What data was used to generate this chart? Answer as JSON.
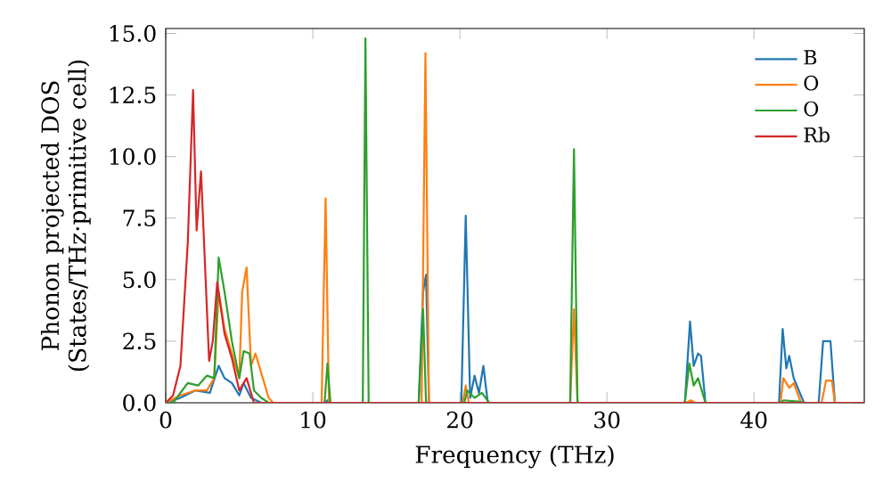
{
  "chart_data": {
    "type": "line",
    "xlabel": "Frequency (THz)",
    "ylabel": "Phonon projected DOS (States/THz·primitive cell)",
    "xlim": [
      0,
      47.5
    ],
    "ylim": [
      0,
      15.2
    ],
    "xticks": [
      0,
      10,
      20,
      30,
      40
    ],
    "yticks": [
      {
        "value": 0,
        "label": "0.0"
      },
      {
        "value": 2.5,
        "label": "2.5"
      },
      {
        "value": 5,
        "label": "5.0"
      },
      {
        "value": 7.5,
        "label": "7.5"
      },
      {
        "value": 10,
        "label": "10.0"
      },
      {
        "value": 12.5,
        "label": "12.5"
      },
      {
        "value": 15,
        "label": "15.0"
      }
    ],
    "legend": "top right",
    "marker": "none",
    "line_style": "solid",
    "grid": false,
    "series": [
      {
        "name": "B",
        "color": "#1f77b4",
        "x": [
          0,
          1,
          2,
          3,
          3.6,
          4,
          4.5,
          5,
          5.3,
          5.8,
          6.5,
          10.8,
          11,
          11.2,
          17.2,
          17.5,
          17.7,
          17.9,
          20.1,
          20.4,
          20.7,
          21,
          21.3,
          21.6,
          21.9,
          35.3,
          35.65,
          35.9,
          36.2,
          36.4,
          36.7,
          41.7,
          41.95,
          42.2,
          42.4,
          42.7,
          43.4,
          44.4,
          44.7,
          45.2,
          45.5,
          47.5
        ],
        "values": [
          0,
          0.2,
          0.5,
          0.4,
          1.5,
          1.0,
          0.8,
          0.3,
          0.8,
          0.2,
          0,
          0,
          0.1,
          0,
          0,
          4.5,
          5.2,
          0,
          0,
          7.6,
          0.2,
          1.1,
          0.4,
          1.5,
          0,
          0,
          3.3,
          1.5,
          2.0,
          1.9,
          0,
          0,
          3.0,
          1.4,
          1.9,
          1.0,
          0,
          0,
          2.5,
          2.5,
          0,
          0
        ]
      },
      {
        "name": "O",
        "color": "#ff7f0e",
        "x": [
          0,
          1,
          2,
          2.8,
          3.3,
          3.6,
          4,
          4.5,
          5,
          5.2,
          5.5,
          5.8,
          6.1,
          6.7,
          7,
          7.3,
          10.6,
          10.87,
          11.1,
          17.4,
          17.66,
          17.9,
          20.2,
          20.4,
          20.6,
          27.5,
          27.76,
          28,
          35.4,
          35.7,
          36,
          41.8,
          42,
          42.4,
          42.7,
          43.2,
          44.6,
          44.9,
          45.3,
          45.5,
          47.5
        ],
        "values": [
          0,
          0.3,
          0.5,
          0.5,
          1.0,
          4.5,
          3.0,
          2.0,
          1.0,
          4.5,
          5.5,
          1.5,
          2.0,
          0.8,
          0.2,
          0,
          0,
          8.3,
          0,
          0,
          14.2,
          0,
          0,
          0.7,
          0,
          0,
          3.8,
          0,
          0,
          0.1,
          0,
          0,
          1.0,
          0.6,
          0.8,
          0,
          0,
          0.9,
          0.9,
          0,
          0
        ]
      },
      {
        "name": "O",
        "color": "#2ca02c",
        "x": [
          0,
          0.5,
          1.5,
          2.2,
          2.8,
          3.3,
          3.6,
          4,
          4.5,
          5,
          5.3,
          5.7,
          6,
          6.5,
          7,
          10.8,
          11,
          11.2,
          13.4,
          13.58,
          13.8,
          17.2,
          17.5,
          17.7,
          20.3,
          20.5,
          21,
          21.5,
          22,
          27.5,
          27.76,
          28,
          35.3,
          35.6,
          35.9,
          36.2,
          36.7,
          41.8,
          42,
          43,
          43.5,
          47.5
        ],
        "values": [
          0,
          0,
          0.8,
          0.7,
          1.1,
          1.0,
          5.9,
          4.5,
          2.5,
          1.0,
          2.1,
          2.0,
          0.5,
          0.2,
          0,
          0,
          1.6,
          0,
          0,
          14.8,
          0,
          0,
          3.8,
          0,
          0,
          0.5,
          0.2,
          0.4,
          0,
          0,
          10.3,
          0,
          0,
          1.6,
          0.7,
          1.0,
          0,
          0,
          0.1,
          0.05,
          0,
          0
        ]
      },
      {
        "name": "Rb",
        "color": "#d62728",
        "x": [
          0,
          0.5,
          1,
          1.5,
          1.86,
          2.1,
          2.4,
          2.95,
          3.2,
          3.5,
          4,
          4.5,
          5,
          5.5,
          6,
          47.5
        ],
        "values": [
          0,
          0.3,
          1.5,
          6.5,
          12.7,
          7.0,
          9.4,
          1.7,
          2.5,
          4.9,
          2.8,
          1.8,
          0.5,
          1.0,
          0,
          0
        ]
      }
    ]
  }
}
